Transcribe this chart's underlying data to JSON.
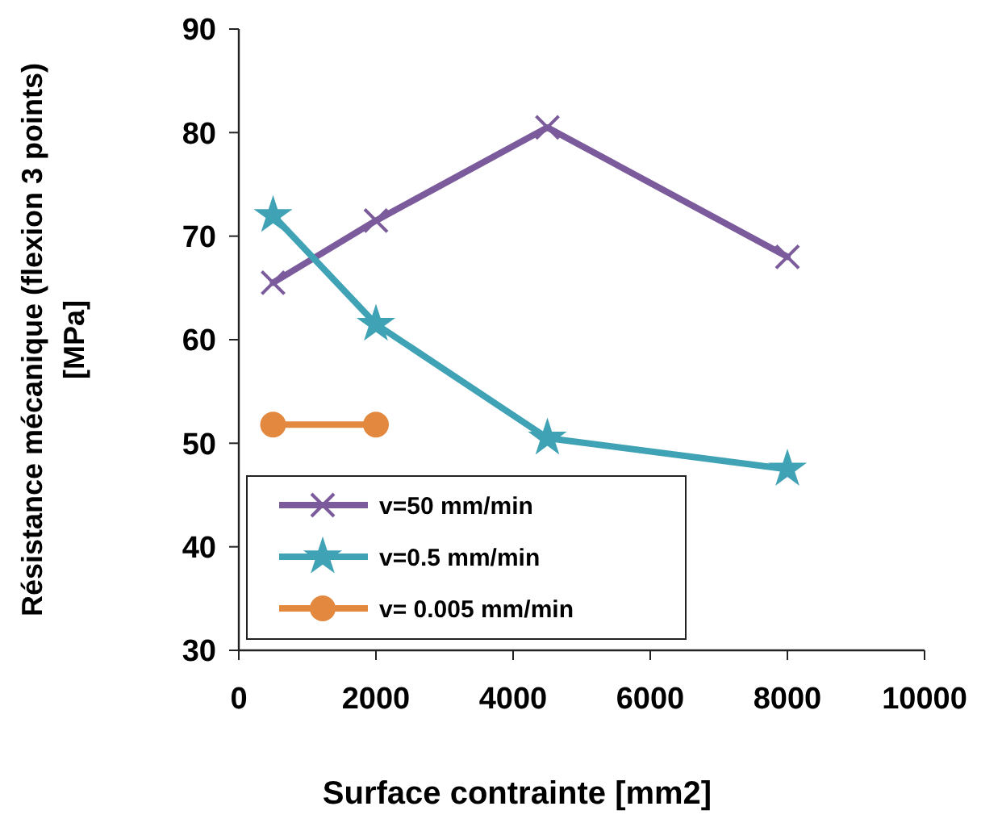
{
  "chart_data": {
    "type": "line",
    "xlabel": "Surface contrainte [mm2]",
    "ylabel": "Résistance mécanique (flexion 3 points) [MPa]",
    "xlim": [
      0,
      10000
    ],
    "xticks": [
      0,
      2000,
      4000,
      6000,
      8000,
      10000
    ],
    "ylim": [
      30,
      90
    ],
    "yticks": [
      30,
      40,
      50,
      60,
      70,
      80,
      90
    ],
    "grid": false,
    "legend": "bottom left",
    "line_style": "solid",
    "series": [
      {
        "name": "v=50 mm/min",
        "color": "#7b5b9b",
        "marker": "cross",
        "x": [
          500,
          2000,
          4500,
          8000
        ],
        "values": [
          65.5,
          71.5,
          80.5,
          68
        ]
      },
      {
        "name": "v=0.5 mm/min",
        "color": "#3fa3b5",
        "marker": "star",
        "x": [
          500,
          2000,
          4500,
          8000
        ],
        "values": [
          72,
          61.5,
          50.5,
          47.5
        ]
      },
      {
        "name": "v= 0.005 mm/min",
        "color": "#e3893f",
        "marker": "circle",
        "x": [
          500,
          2000
        ],
        "values": [
          51.8,
          51.8
        ]
      }
    ]
  }
}
